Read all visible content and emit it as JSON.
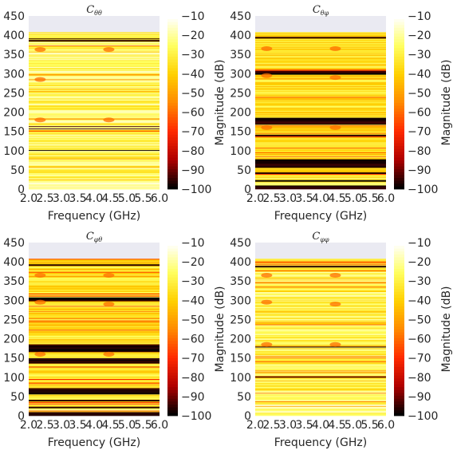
{
  "chart_data": [
    {
      "type": "heatmap",
      "title": "Cθθ",
      "title_main": "C",
      "title_sub": "θθ",
      "xlabel": "Frequency (GHz)",
      "ylabel": "",
      "xlim": [
        2.0,
        6.0
      ],
      "ylim": [
        0,
        450
      ],
      "data_ymax": 408,
      "x_ticks": [
        "2.0",
        "2.5",
        "3.0",
        "3.5",
        "4.0",
        "4.5",
        "5.0",
        "5.5",
        "6.0"
      ],
      "y_ticks": [
        "0",
        "50",
        "100",
        "150",
        "200",
        "250",
        "300",
        "350",
        "400",
        "450"
      ],
      "colorbar": {
        "label": "Magnitude (dB)",
        "range": [
          -100,
          -10
        ],
        "ticks": [
          "-10",
          "-20",
          "-30",
          "-40",
          "-50",
          "-60",
          "-70",
          "-80",
          "-90",
          "-100"
        ],
        "colormap": "hot",
        "colors": [
          "#000000",
          "#b00000",
          "#ff2a00",
          "#ff8a00",
          "#ffd000",
          "#ffff60",
          "#ffffff"
        ]
      },
      "dark_bands": [
        [
          100,
          101
        ],
        [
          156,
          157
        ],
        [
          162,
          163
        ],
        [
          383,
          388
        ],
        [
          390,
          392
        ]
      ],
      "hot_features": [
        [
          2.35,
          363
        ],
        [
          4.45,
          363
        ],
        [
          2.35,
          285
        ],
        [
          2.35,
          180
        ],
        [
          4.45,
          180
        ]
      ],
      "base_level": -25
    },
    {
      "type": "heatmap",
      "title": "Cθφ",
      "title_main": "C",
      "title_sub": "θφ",
      "xlabel": "Frequency (GHz)",
      "ylabel": "",
      "xlim": [
        2.0,
        6.0
      ],
      "ylim": [
        0,
        450
      ],
      "data_ymax": 408,
      "x_ticks": [
        "2.0",
        "2.5",
        "3.0",
        "3.5",
        "4.0",
        "4.5",
        "5.0",
        "5.5",
        "6.0"
      ],
      "y_ticks": [
        "0",
        "50",
        "100",
        "150",
        "200",
        "250",
        "300",
        "350",
        "400",
        "450"
      ],
      "colorbar": {
        "label": "Magnitude (dB)",
        "range": [
          -100,
          -10
        ],
        "ticks": [
          "-10",
          "-20",
          "-30",
          "-40",
          "-50",
          "-60",
          "-70",
          "-80",
          "-90",
          "-100"
        ],
        "colormap": "hot",
        "colors": [
          "#000000",
          "#b00000",
          "#ff2a00",
          "#ff8a00",
          "#ffd000",
          "#ffff60",
          "#ffffff"
        ]
      },
      "dark_bands": [
        [
          0,
          10
        ],
        [
          20,
          23
        ],
        [
          40,
          44
        ],
        [
          55,
          78
        ],
        [
          138,
          142
        ],
        [
          168,
          185
        ],
        [
          298,
          308
        ],
        [
          392,
          396
        ]
      ],
      "hot_features": [
        [
          2.35,
          365
        ],
        [
          4.45,
          365
        ],
        [
          2.35,
          295
        ],
        [
          4.45,
          290
        ],
        [
          2.35,
          160
        ],
        [
          4.45,
          160
        ]
      ],
      "base_level": -35
    },
    {
      "type": "heatmap",
      "title": "Cφθ",
      "title_main": "C",
      "title_sub": "φθ",
      "xlabel": "Frequency (GHz)",
      "ylabel": "",
      "xlim": [
        2.0,
        6.0
      ],
      "ylim": [
        0,
        450
      ],
      "data_ymax": 408,
      "x_ticks": [
        "2.0",
        "2.5",
        "3.0",
        "3.5",
        "4.0",
        "4.5",
        "5.0",
        "5.5",
        "6.0"
      ],
      "y_ticks": [
        "0",
        "50",
        "100",
        "150",
        "200",
        "250",
        "300",
        "350",
        "400",
        "450"
      ],
      "colorbar": {
        "label": "Magnitude (dB)",
        "range": [
          -100,
          -10
        ],
        "ticks": [
          "-10",
          "-20",
          "-30",
          "-40",
          "-50",
          "-60",
          "-70",
          "-80",
          "-90",
          "-100"
        ],
        "colormap": "hot",
        "colors": [
          "#000000",
          "#b00000",
          "#ff2a00",
          "#ff8a00",
          "#ffd000",
          "#ffff60",
          "#ffffff"
        ]
      },
      "dark_bands": [
        [
          0,
          10
        ],
        [
          20,
          23
        ],
        [
          38,
          42
        ],
        [
          55,
          72
        ],
        [
          135,
          150
        ],
        [
          166,
          185
        ],
        [
          298,
          308
        ],
        [
          390,
          394
        ]
      ],
      "hot_features": [
        [
          2.35,
          365
        ],
        [
          4.45,
          365
        ],
        [
          2.35,
          295
        ],
        [
          4.45,
          290
        ],
        [
          2.35,
          160
        ],
        [
          4.45,
          160
        ]
      ],
      "base_level": -35
    },
    {
      "type": "heatmap",
      "title": "Cφφ",
      "title_main": "C",
      "title_sub": "φφ",
      "xlabel": "Frequency (GHz)",
      "ylabel": "",
      "xlim": [
        2.0,
        6.0
      ],
      "ylim": [
        0,
        450
      ],
      "data_ymax": 408,
      "x_ticks": [
        "2.0",
        "2.5",
        "3.0",
        "3.5",
        "4.0",
        "4.5",
        "5.0",
        "5.5",
        "6.0"
      ],
      "y_ticks": [
        "0",
        "50",
        "100",
        "150",
        "200",
        "250",
        "300",
        "350",
        "400",
        "450"
      ],
      "colorbar": {
        "label": "Magnitude (dB)",
        "range": [
          -100,
          -10
        ],
        "ticks": [
          "-10",
          "-20",
          "-30",
          "-40",
          "-50",
          "-60",
          "-70",
          "-80",
          "-90",
          "-100"
        ],
        "colormap": "hot",
        "colors": [
          "#000000",
          "#b00000",
          "#ff2a00",
          "#ff8a00",
          "#ffd000",
          "#ffff60",
          "#ffffff"
        ]
      },
      "dark_bands": [
        [
          100,
          101
        ],
        [
          178,
          179
        ],
        [
          386,
          390
        ]
      ],
      "hot_features": [
        [
          2.35,
          365
        ],
        [
          4.45,
          365
        ],
        [
          2.35,
          295
        ],
        [
          4.45,
          290
        ],
        [
          2.35,
          185
        ],
        [
          4.45,
          185
        ]
      ],
      "base_level": -28
    }
  ],
  "colors": {
    "axes_background": "#eaeaf2",
    "text": "#262626"
  }
}
